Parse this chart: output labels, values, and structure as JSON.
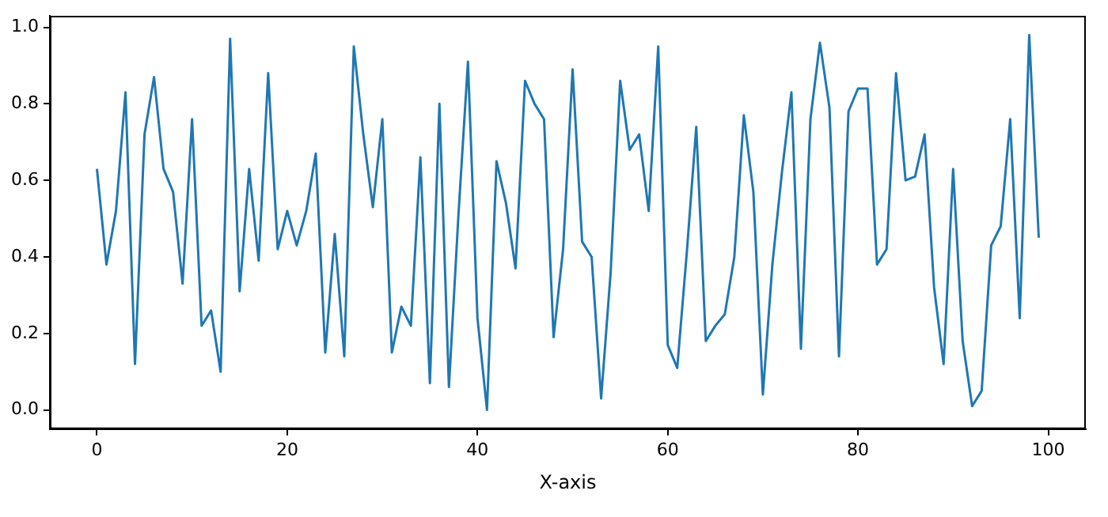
{
  "chart_data": {
    "type": "line",
    "xlabel": "X-axis",
    "x": [
      0,
      1,
      2,
      3,
      4,
      5,
      6,
      7,
      8,
      9,
      10,
      11,
      12,
      13,
      14,
      15,
      16,
      17,
      18,
      19,
      20,
      21,
      22,
      23,
      24,
      25,
      26,
      27,
      28,
      29,
      30,
      31,
      32,
      33,
      34,
      35,
      36,
      37,
      38,
      39,
      40,
      41,
      42,
      43,
      44,
      45,
      46,
      47,
      48,
      49,
      50,
      51,
      52,
      53,
      54,
      55,
      56,
      57,
      58,
      59,
      60,
      61,
      62,
      63,
      64,
      65,
      66,
      67,
      68,
      69,
      70,
      71,
      72,
      73,
      74,
      75,
      76,
      77,
      78,
      79,
      80,
      81,
      82,
      83,
      84,
      85,
      86,
      87,
      88,
      89,
      90,
      91,
      92,
      93,
      94,
      95,
      96,
      97,
      98,
      99
    ],
    "series": [
      {
        "color": "#1f77b4",
        "values": [
          0.63,
          0.38,
          0.52,
          0.83,
          0.12,
          0.72,
          0.87,
          0.63,
          0.57,
          0.33,
          0.76,
          0.22,
          0.26,
          0.1,
          0.97,
          0.31,
          0.63,
          0.39,
          0.88,
          0.42,
          0.52,
          0.43,
          0.52,
          0.67,
          0.15,
          0.46,
          0.14,
          0.95,
          0.72,
          0.53,
          0.76,
          0.15,
          0.27,
          0.22,
          0.66,
          0.07,
          0.8,
          0.06,
          0.51,
          0.91,
          0.24,
          0.0,
          0.65,
          0.54,
          0.37,
          0.86,
          0.8,
          0.76,
          0.19,
          0.42,
          0.89,
          0.44,
          0.4,
          0.03,
          0.36,
          0.86,
          0.68,
          0.72,
          0.52,
          0.95,
          0.17,
          0.11,
          0.41,
          0.74,
          0.18,
          0.22,
          0.25,
          0.4,
          0.77,
          0.57,
          0.04,
          0.38,
          0.62,
          0.83,
          0.16,
          0.76,
          0.96,
          0.79,
          0.14,
          0.78,
          0.84,
          0.84,
          0.38,
          0.42,
          0.88,
          0.6,
          0.61,
          0.72,
          0.32,
          0.12,
          0.63,
          0.18,
          0.01,
          0.05,
          0.43,
          0.48,
          0.76,
          0.24,
          0.98,
          0.45
        ]
      }
    ],
    "xlim": [
      -4.95,
      103.95
    ],
    "xticks": [
      0,
      20,
      40,
      60,
      80,
      100
    ],
    "ylim": [
      -0.05,
      1.03
    ],
    "yticks": [
      {
        "value": 0,
        "label": "0.0"
      },
      {
        "value": 0.2,
        "label": "0.2"
      },
      {
        "value": 0.4,
        "label": "0.4"
      },
      {
        "value": 0.6,
        "label": "0.6"
      },
      {
        "value": 0.8,
        "label": "0.8"
      },
      {
        "value": 1,
        "label": "1.0"
      }
    ]
  }
}
